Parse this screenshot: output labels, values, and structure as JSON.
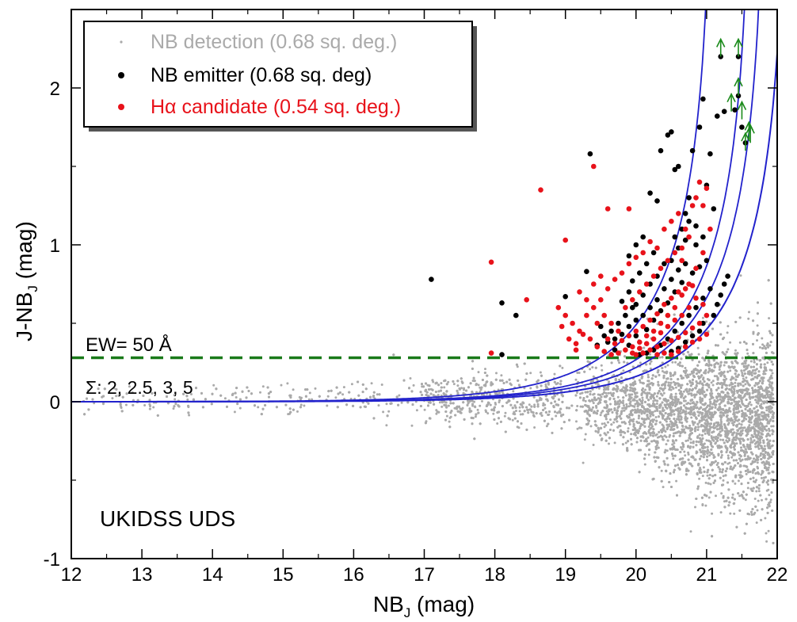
{
  "chart_data": {
    "type": "scatter",
    "xlabel": "NB",
    "xlabel_sub": "J",
    "xlabel_unit": " (mag)",
    "ylabel": "J-NB",
    "ylabel_sub": "J",
    "ylabel_unit": " (mag)",
    "xlim": [
      12,
      22
    ],
    "ylim": [
      -1,
      2.5
    ],
    "x_ticks": [
      12,
      13,
      14,
      15,
      16,
      17,
      18,
      19,
      20,
      21,
      22
    ],
    "x_tick_labels": [
      "12",
      "13",
      "14",
      "15",
      "16",
      "17",
      "18",
      "19",
      "20",
      "21",
      "22"
    ],
    "y_ticks": [
      -1,
      0,
      1,
      2
    ],
    "y_tick_labels": [
      "-1",
      "0",
      "1",
      "2"
    ],
    "legend": {
      "placement": "top-left",
      "entries": [
        {
          "label": "NB detection (0.68 sq. deg.)",
          "color": "#aaaaaa"
        },
        {
          "label": "NB emitter (0.68 sq. deg)",
          "color": "#000000"
        },
        {
          "label": "Hα candidate (0.54 sq. deg.)",
          "color": "#e8121a"
        }
      ]
    },
    "annotations": {
      "ew": "EW= 50 Å",
      "sigma": "Σ: 2, 2.5, 3, 5",
      "field": "UKIDSS UDS"
    },
    "ew_cut": {
      "y": 0.28,
      "color": "#1a7a1a"
    },
    "sigma_curves": {
      "color": "#2222cc",
      "sigmas": [
        2,
        2.5,
        3,
        5
      ],
      "divergence_mag": [
        22.15,
        21.85,
        21.65,
        21.1
      ]
    },
    "series": [
      {
        "name": "NB detection (0.68 sq. deg.)",
        "color": "#aaaaaa",
        "description_points": "dense cloud",
        "envelope": [
          [
            12.1,
            0.0
          ],
          [
            16,
            0.02
          ],
          [
            18,
            0.02
          ],
          [
            19,
            0.01
          ],
          [
            20,
            -0.02
          ],
          [
            20.5,
            -0.05
          ],
          [
            21,
            -0.05
          ],
          [
            21.5,
            -0.08
          ],
          [
            22,
            -0.1
          ]
        ],
        "spread": [
          [
            12,
            0.06
          ],
          [
            16,
            0.1
          ],
          [
            18,
            0.13
          ],
          [
            19,
            0.17
          ],
          [
            20,
            0.24
          ],
          [
            20.5,
            0.3
          ],
          [
            21,
            0.36
          ],
          [
            21.5,
            0.4
          ],
          [
            22,
            0.45
          ]
        ]
      },
      {
        "name": "NB emitter (0.68 sq. deg)",
        "color": "#000000",
        "points": [
          [
            17.1,
            0.78
          ],
          [
            18.1,
            0.63
          ],
          [
            18.3,
            0.55
          ],
          [
            18.1,
            0.3
          ],
          [
            19.35,
            1.58
          ],
          [
            19.3,
            0.83
          ],
          [
            19.0,
            0.67
          ],
          [
            19.9,
            0.93
          ],
          [
            20.0,
            1.0
          ],
          [
            20.1,
            1.05
          ],
          [
            20.2,
            1.33
          ],
          [
            20.3,
            1.28
          ],
          [
            20.35,
            1.6
          ],
          [
            20.45,
            1.7
          ],
          [
            20.5,
            1.72
          ],
          [
            20.55,
            1.48
          ],
          [
            20.6,
            1.5
          ],
          [
            20.7,
            1.2
          ],
          [
            20.75,
            1.3
          ],
          [
            20.8,
            1.6
          ],
          [
            20.9,
            1.75
          ],
          [
            20.95,
            1.93
          ],
          [
            21.05,
            1.58
          ],
          [
            21.15,
            1.82
          ],
          [
            21.25,
            1.85
          ],
          [
            21.4,
            1.86
          ],
          [
            21.45,
            1.95
          ],
          [
            21.5,
            1.75
          ],
          [
            21.55,
            1.65
          ],
          [
            21.1,
            1.23
          ],
          [
            21.0,
            1.38
          ],
          [
            20.85,
            1.12
          ],
          [
            20.7,
            1.03
          ],
          [
            20.6,
            0.98
          ],
          [
            20.5,
            0.9
          ],
          [
            20.4,
            0.88
          ],
          [
            20.3,
            0.8
          ],
          [
            20.2,
            0.75
          ],
          [
            20.1,
            0.68
          ],
          [
            19.95,
            0.6
          ],
          [
            19.85,
            0.55
          ],
          [
            19.75,
            0.5
          ],
          [
            19.65,
            0.45
          ],
          [
            19.6,
            0.38
          ],
          [
            19.7,
            0.33
          ],
          [
            19.9,
            0.36
          ],
          [
            20.0,
            0.42
          ],
          [
            20.15,
            0.46
          ],
          [
            20.25,
            0.52
          ],
          [
            20.35,
            0.58
          ],
          [
            20.45,
            0.63
          ],
          [
            20.55,
            0.7
          ],
          [
            20.65,
            0.76
          ],
          [
            20.8,
            0.82
          ],
          [
            20.9,
            0.86
          ],
          [
            21.0,
            0.9
          ],
          [
            21.05,
            0.72
          ],
          [
            20.95,
            0.66
          ],
          [
            20.85,
            0.6
          ],
          [
            20.75,
            0.55
          ],
          [
            20.65,
            0.5
          ],
          [
            20.55,
            0.45
          ],
          [
            20.45,
            0.4
          ],
          [
            20.35,
            0.36
          ],
          [
            20.25,
            0.33
          ],
          [
            20.15,
            0.31
          ],
          [
            20.05,
            0.3
          ],
          [
            20.95,
            0.5
          ],
          [
            20.9,
            0.45
          ],
          [
            20.8,
            0.42
          ],
          [
            20.7,
            0.38
          ],
          [
            20.6,
            0.34
          ],
          [
            20.5,
            0.32
          ],
          [
            21.1,
            0.55
          ],
          [
            21.15,
            0.62
          ],
          [
            21.2,
            0.68
          ],
          [
            21.25,
            0.75
          ],
          [
            21.3,
            0.8
          ],
          [
            20.3,
            0.65
          ],
          [
            20.2,
            0.6
          ],
          [
            20.1,
            0.55
          ],
          [
            20.0,
            0.52
          ],
          [
            19.9,
            0.48
          ],
          [
            19.8,
            0.43
          ],
          [
            19.7,
            0.4
          ],
          [
            20.4,
            0.72
          ],
          [
            20.5,
            0.78
          ],
          [
            20.6,
            0.84
          ],
          [
            20.7,
            0.88
          ],
          [
            20.25,
            0.95
          ],
          [
            20.15,
            0.88
          ],
          [
            20.05,
            0.82
          ],
          [
            19.95,
            0.77
          ],
          [
            20.55,
            1.05
          ],
          [
            20.65,
            1.1
          ],
          [
            20.75,
            1.15
          ],
          [
            20.85,
            1.0
          ],
          [
            20.95,
            1.05
          ],
          [
            19.5,
            0.48
          ],
          [
            19.55,
            0.42
          ],
          [
            19.45,
            0.36
          ],
          [
            19.8,
            0.64
          ],
          [
            19.9,
            0.7
          ],
          [
            20.0,
            0.62
          ],
          [
            21.2,
            2.2
          ],
          [
            21.45,
            2.2
          ]
        ],
        "lower_limits": [
          [
            21.2,
            2.2
          ],
          [
            21.45,
            2.2
          ]
        ]
      },
      {
        "name": "Hα candidate (0.54 sq. deg.)",
        "color": "#e8121a",
        "points": [
          [
            17.95,
            0.89
          ],
          [
            17.95,
            0.31
          ],
          [
            18.45,
            0.65
          ],
          [
            18.65,
            1.35
          ],
          [
            19.0,
            1.03
          ],
          [
            19.4,
            1.5
          ],
          [
            19.6,
            1.23
          ],
          [
            19.9,
            1.23
          ],
          [
            18.9,
            0.6
          ],
          [
            19.0,
            0.55
          ],
          [
            19.1,
            0.5
          ],
          [
            18.95,
            0.48
          ],
          [
            19.05,
            0.4
          ],
          [
            19.15,
            0.37
          ],
          [
            19.2,
            0.45
          ],
          [
            19.3,
            0.55
          ],
          [
            19.4,
            0.6
          ],
          [
            19.5,
            0.65
          ],
          [
            19.6,
            0.72
          ],
          [
            19.7,
            0.78
          ],
          [
            19.8,
            0.82
          ],
          [
            19.9,
            0.88
          ],
          [
            20.0,
            0.92
          ],
          [
            20.1,
            0.95
          ],
          [
            20.2,
            1.02
          ],
          [
            20.3,
            0.98
          ],
          [
            20.4,
            1.1
          ],
          [
            20.5,
            1.15
          ],
          [
            20.6,
            1.2
          ],
          [
            20.7,
            1.1
          ],
          [
            20.8,
            1.25
          ],
          [
            20.9,
            1.4
          ],
          [
            21.0,
            1.36
          ],
          [
            21.05,
            1.1
          ],
          [
            20.95,
            0.95
          ],
          [
            20.85,
            0.85
          ],
          [
            20.75,
            0.75
          ],
          [
            20.65,
            0.68
          ],
          [
            20.55,
            0.6
          ],
          [
            20.45,
            0.55
          ],
          [
            20.35,
            0.5
          ],
          [
            20.25,
            0.45
          ],
          [
            20.15,
            0.42
          ],
          [
            20.05,
            0.38
          ],
          [
            19.95,
            0.35
          ],
          [
            19.85,
            0.33
          ],
          [
            19.75,
            0.31
          ],
          [
            19.65,
            0.3
          ],
          [
            19.55,
            0.32
          ],
          [
            19.45,
            0.35
          ],
          [
            19.35,
            0.4
          ],
          [
            19.25,
            0.43
          ],
          [
            19.15,
            0.33
          ],
          [
            20.0,
            0.3
          ],
          [
            20.1,
            0.31
          ],
          [
            20.2,
            0.33
          ],
          [
            20.3,
            0.35
          ],
          [
            20.4,
            0.37
          ],
          [
            20.5,
            0.39
          ],
          [
            20.6,
            0.41
          ],
          [
            20.7,
            0.44
          ],
          [
            20.8,
            0.47
          ],
          [
            20.9,
            0.5
          ],
          [
            21.0,
            0.55
          ],
          [
            20.95,
            0.62
          ],
          [
            20.85,
            0.66
          ],
          [
            20.75,
            0.6
          ],
          [
            20.65,
            0.55
          ],
          [
            20.55,
            0.52
          ],
          [
            20.45,
            0.48
          ],
          [
            20.35,
            0.44
          ],
          [
            20.25,
            0.4
          ],
          [
            20.15,
            0.37
          ],
          [
            20.05,
            0.34
          ],
          [
            19.95,
            0.31
          ],
          [
            19.75,
            0.45
          ],
          [
            19.65,
            0.5
          ],
          [
            19.55,
            0.55
          ],
          [
            19.45,
            0.5
          ],
          [
            19.85,
            0.6
          ],
          [
            19.95,
            0.65
          ],
          [
            20.05,
            0.7
          ],
          [
            20.15,
            0.75
          ],
          [
            20.25,
            0.8
          ],
          [
            20.35,
            0.85
          ],
          [
            20.45,
            0.9
          ],
          [
            20.55,
            0.95
          ],
          [
            20.65,
            0.98
          ],
          [
            20.7,
            0.35
          ],
          [
            20.6,
            0.32
          ],
          [
            20.5,
            0.3
          ],
          [
            20.4,
            0.31
          ],
          [
            20.3,
            0.3
          ],
          [
            20.8,
            0.38
          ],
          [
            20.9,
            0.4
          ],
          [
            21.0,
            0.43
          ],
          [
            19.7,
            0.37
          ],
          [
            19.6,
            0.4
          ],
          [
            19.8,
            0.39
          ],
          [
            19.9,
            0.42
          ],
          [
            20.0,
            0.45
          ],
          [
            20.1,
            0.48
          ],
          [
            20.2,
            0.52
          ],
          [
            20.3,
            0.56
          ],
          [
            20.4,
            0.62
          ],
          [
            20.5,
            0.66
          ],
          [
            20.6,
            0.7
          ],
          [
            20.7,
            0.72
          ],
          [
            20.8,
            0.74
          ],
          [
            19.3,
            0.65
          ],
          [
            19.2,
            0.7
          ],
          [
            19.4,
            0.75
          ],
          [
            19.5,
            0.8
          ],
          [
            20.75,
            1.05
          ],
          [
            20.65,
            0.9
          ],
          [
            20.85,
            1.3
          ],
          [
            20.95,
            1.25
          ]
        ]
      }
    ]
  }
}
